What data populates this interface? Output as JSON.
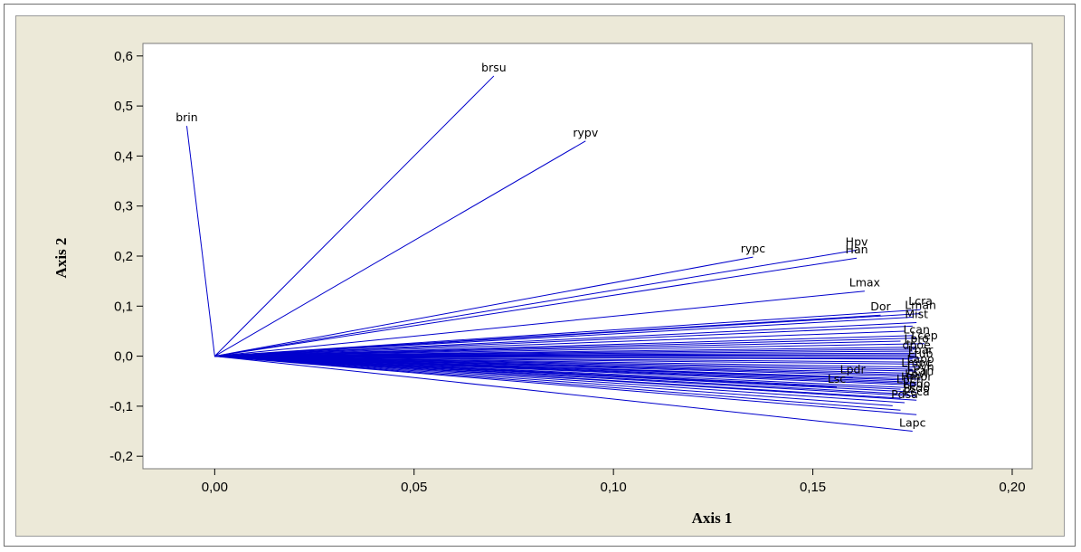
{
  "chart_data": {
    "type": "line",
    "title": "",
    "xlabel": "Axis 1",
    "ylabel": "Axis 2",
    "xlim": [
      -0.018,
      0.205
    ],
    "ylim": [
      -0.225,
      0.625
    ],
    "xticks": [
      "0,00",
      "0,05",
      "0,10",
      "0,15",
      "0,20"
    ],
    "xtick_values": [
      0.0,
      0.05,
      0.1,
      0.15,
      0.2
    ],
    "yticks": [
      "0,6",
      "0,5",
      "0,4",
      "0,3",
      "0,2",
      "0,1",
      "0,0",
      "-0,1",
      "-0,2"
    ],
    "ytick_values": [
      0.6,
      0.5,
      0.4,
      0.3,
      0.2,
      0.1,
      0.0,
      -0.1,
      -0.2
    ],
    "grid": false,
    "origin": [
      0.0,
      0.0
    ],
    "colors": {
      "vector": "#0000cc",
      "plot_bg": "#ffffff",
      "panel_bg": "#ece9d8"
    },
    "vectors": [
      {
        "label": "brin",
        "x": -0.007,
        "y": 0.46
      },
      {
        "label": "brsu",
        "x": 0.07,
        "y": 0.56
      },
      {
        "label": "rypv",
        "x": 0.093,
        "y": 0.43
      },
      {
        "label": "rypc",
        "x": 0.135,
        "y": 0.198
      },
      {
        "label": "Hpv",
        "x": 0.161,
        "y": 0.212
      },
      {
        "label": "Han",
        "x": 0.161,
        "y": 0.196
      },
      {
        "label": "Lmax",
        "x": 0.163,
        "y": 0.13
      },
      {
        "label": "Lcra",
        "x": 0.177,
        "y": 0.093
      },
      {
        "label": "Lman",
        "x": 0.177,
        "y": 0.085
      },
      {
        "label": "Dor",
        "x": 0.167,
        "y": 0.082
      },
      {
        "label": "Mist",
        "x": 0.176,
        "y": 0.067
      },
      {
        "label": "Lcan",
        "x": 0.176,
        "y": 0.036
      },
      {
        "label": "Lcep",
        "x": 0.178,
        "y": 0.025
      },
      {
        "label": "Lpro",
        "x": 0.176,
        "y": 0.018
      },
      {
        "label": "dpoe",
        "x": 0.176,
        "y": 0.006
      },
      {
        "label": "Lbar",
        "x": 0.177,
        "y": -0.004
      },
      {
        "label": "Ltub",
        "x": 0.177,
        "y": -0.012
      },
      {
        "label": "Lapo",
        "x": 0.177,
        "y": -0.022
      },
      {
        "label": "Lmpc",
        "x": 0.176,
        "y": -0.03
      },
      {
        "label": "Lpvh",
        "x": 0.177,
        "y": -0.038
      },
      {
        "label": "Lcah",
        "x": 0.177,
        "y": -0.046
      },
      {
        "label": "Lpdr",
        "x": 0.16,
        "y": -0.043
      },
      {
        "label": "Lpvl",
        "x": 0.176,
        "y": -0.052
      },
      {
        "label": "Hmor",
        "x": 0.176,
        "y": -0.058
      },
      {
        "label": "Lpcr",
        "x": 0.174,
        "y": -0.063
      },
      {
        "label": "Lsc",
        "x": 0.156,
        "y": -0.062
      },
      {
        "label": "Lpdo",
        "x": 0.176,
        "y": -0.072
      },
      {
        "label": "Psdo",
        "x": 0.176,
        "y": -0.08
      },
      {
        "label": "Pcca",
        "x": 0.176,
        "y": -0.088
      },
      {
        "label": "Pdsa",
        "x": 0.173,
        "y": -0.093
      },
      {
        "label": "Lapc",
        "x": 0.175,
        "y": -0.15
      }
    ],
    "extra_vectors": [
      {
        "x": 0.175,
        "y": 0.078
      },
      {
        "x": 0.175,
        "y": 0.06
      },
      {
        "x": 0.173,
        "y": 0.05
      },
      {
        "x": 0.175,
        "y": 0.041
      },
      {
        "x": 0.172,
        "y": 0.03
      },
      {
        "x": 0.176,
        "y": 0.014
      },
      {
        "x": 0.175,
        "y": 0.01
      },
      {
        "x": 0.176,
        "y": 0.003
      },
      {
        "x": 0.176,
        "y": 0.0
      },
      {
        "x": 0.175,
        "y": -0.006
      },
      {
        "x": 0.176,
        "y": -0.016
      },
      {
        "x": 0.175,
        "y": -0.026
      },
      {
        "x": 0.174,
        "y": -0.034
      },
      {
        "x": 0.176,
        "y": -0.041
      },
      {
        "x": 0.174,
        "y": -0.048
      },
      {
        "x": 0.176,
        "y": -0.055
      },
      {
        "x": 0.172,
        "y": -0.066
      },
      {
        "x": 0.174,
        "y": -0.076
      },
      {
        "x": 0.172,
        "y": -0.084
      },
      {
        "x": 0.17,
        "y": -0.099
      },
      {
        "x": 0.172,
        "y": -0.108
      },
      {
        "x": 0.176,
        "y": -0.117
      }
    ]
  }
}
